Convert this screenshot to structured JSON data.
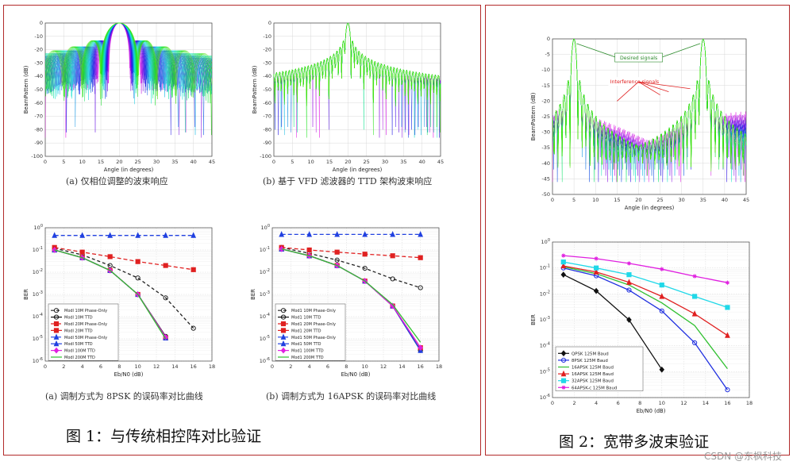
{
  "figure1": {
    "title": "图 1：与传统相控阵对比验证",
    "beam_a": {
      "caption": "(a) 仅相位调整的波束响应",
      "chart_data": {
        "type": "line",
        "title": "",
        "xlabel": "Angle (in degrees)",
        "ylabel": "BeamPattern (dB)",
        "xlim": [
          0,
          45
        ],
        "ylim": [
          -100,
          0
        ],
        "xticks": [
          0,
          5,
          10,
          15,
          20,
          25,
          30,
          35,
          40,
          45
        ],
        "yticks": [
          0,
          -10,
          -20,
          -30,
          -40,
          -50,
          -60,
          -70,
          -80,
          -90,
          -100
        ],
        "mainlobe_deg": 20,
        "mainlobe_dB": 0,
        "beam_width_deg": 4,
        "sidelobe_floor_dB": -40,
        "null_depth_dB": -85
      }
    },
    "beam_b": {
      "caption": "(b) 基于 VFD 滤波器的 TTD 架构波束响应",
      "chart_data": {
        "type": "line",
        "title": "",
        "xlabel": "Angle (in degrees)",
        "ylabel": "BeamPattern (dB)",
        "xlim": [
          0,
          45
        ],
        "ylim": [
          -100,
          0
        ],
        "xticks": [
          0,
          5,
          10,
          15,
          20,
          25,
          30,
          35,
          40,
          45
        ],
        "yticks": [
          0,
          -10,
          -20,
          -30,
          -40,
          -50,
          -60,
          -70,
          -80,
          -90,
          -100
        ],
        "mainlobe_deg": 20,
        "mainlobe_dB": 0,
        "beam_width_deg": 1,
        "sidelobe_floor_dB": -40,
        "null_depth_dB": -85
      }
    },
    "ber_a": {
      "caption": "(a) 调制方式为 8PSK 的误码率对比曲线",
      "chart_data": {
        "type": "line",
        "xlabel": "Eb/N0 (dB)",
        "ylabel": "BER",
        "yscale": "log",
        "xlim": [
          0,
          18
        ],
        "ylim": [
          1e-06,
          1
        ],
        "xticks": [
          0,
          2,
          4,
          6,
          8,
          10,
          12,
          14,
          16,
          18
        ],
        "yticks": [
          1,
          0.1,
          0.01,
          0.001,
          0.0001,
          1e-05,
          1e-06
        ],
        "ytick_labels": [
          "10^0",
          "10^-1",
          "10^-2",
          "10^-3",
          "10^-4",
          "10^-5",
          "10^-6"
        ],
        "legend_position": "lower-left",
        "series": [
          {
            "name": "Modl 10M Phase-Only",
            "color": "#222222",
            "dash": "4,3",
            "marker": "circle",
            "x": [
              1,
              4,
              7,
              10,
              13,
              16
            ],
            "y": [
              0.12,
              0.06,
              0.02,
              0.0055,
              0.0007,
              3e-05
            ]
          },
          {
            "name": "Modl 10M TTD",
            "color": "#111111",
            "dash": "",
            "marker": "circle",
            "x": [
              1,
              4,
              7,
              10,
              13
            ],
            "y": [
              0.1,
              0.045,
              0.012,
              0.001,
              1.3e-05
            ]
          },
          {
            "name": "Modl 20M Phase-Only",
            "color": "#e02020",
            "dash": "5,3",
            "marker": "square",
            "x": [
              1,
              4,
              7,
              10,
              13,
              16
            ],
            "y": [
              0.13,
              0.08,
              0.05,
              0.03,
              0.02,
              0.013
            ]
          },
          {
            "name": "Modl 20M TTD",
            "color": "#e02020",
            "dash": "",
            "marker": "square",
            "x": [
              1,
              4,
              7,
              10,
              13
            ],
            "y": [
              0.1,
              0.045,
              0.012,
              0.001,
              1.1e-05
            ]
          },
          {
            "name": "Modl 50M Phase-Only",
            "color": "#2040e0",
            "dash": "5,3",
            "marker": "triangle",
            "x": [
              1,
              4,
              7,
              10,
              13,
              16
            ],
            "y": [
              0.45,
              0.45,
              0.45,
              0.45,
              0.45,
              0.45
            ]
          },
          {
            "name": "Modl 50M TTD",
            "color": "#2040e0",
            "dash": "",
            "marker": "triangle",
            "x": [
              1,
              4,
              7,
              10,
              13
            ],
            "y": [
              0.1,
              0.045,
              0.012,
              0.001,
              1.1e-05
            ]
          },
          {
            "name": "Modl 100M TTD",
            "color": "#e020e0",
            "dash": "",
            "marker": "diamond",
            "x": [
              1,
              4,
              7,
              10,
              13
            ],
            "y": [
              0.1,
              0.045,
              0.012,
              0.001,
              1.2e-05
            ]
          },
          {
            "name": "Modl 200M TTD",
            "color": "#30c030",
            "dash": "",
            "marker": "none",
            "x": [
              1,
              4,
              7,
              10,
              13
            ],
            "y": [
              0.1,
              0.045,
              0.012,
              0.001,
              1e-05
            ]
          }
        ]
      }
    },
    "ber_b": {
      "caption": "(b) 调制方式为 16APSK 的误码率对比曲线",
      "chart_data": {
        "type": "line",
        "xlabel": "Eb/N0 (dB)",
        "ylabel": "BER",
        "yscale": "log",
        "xlim": [
          0,
          18
        ],
        "ylim": [
          1e-06,
          1
        ],
        "xticks": [
          0,
          2,
          4,
          6,
          8,
          10,
          12,
          14,
          16,
          18
        ],
        "yticks": [
          1,
          0.1,
          0.01,
          0.001,
          0.0001,
          1e-05,
          1e-06
        ],
        "ytick_labels": [
          "10^0",
          "10^-1",
          "10^-2",
          "10^-3",
          "10^-4",
          "10^-5",
          "10^-6"
        ],
        "legend_position": "lower-left",
        "series": [
          {
            "name": "Mod1 10M Phase-Only",
            "color": "#222222",
            "dash": "4,3",
            "marker": "circle",
            "x": [
              1,
              4,
              7,
              10,
              13,
              16
            ],
            "y": [
              0.13,
              0.07,
              0.035,
              0.015,
              0.005,
              0.002
            ]
          },
          {
            "name": "Mod1 10M TTD",
            "color": "#111111",
            "dash": "",
            "marker": "circle",
            "x": [
              1,
              4,
              7,
              10,
              13,
              16
            ],
            "y": [
              0.11,
              0.055,
              0.02,
              0.004,
              0.0003,
              3e-06
            ]
          },
          {
            "name": "Mod1 20M Phase-Only",
            "color": "#e02020",
            "dash": "5,3",
            "marker": "square",
            "x": [
              1,
              4,
              7,
              10,
              13,
              16
            ],
            "y": [
              0.13,
              0.1,
              0.08,
              0.065,
              0.055,
              0.045
            ]
          },
          {
            "name": "Mod1 20M TTD",
            "color": "#e02020",
            "dash": "",
            "marker": "square",
            "x": [
              1,
              4,
              7,
              10,
              13,
              16
            ],
            "y": [
              0.11,
              0.055,
              0.02,
              0.004,
              0.0003,
              4e-06
            ]
          },
          {
            "name": "Mod1 50M Phase-Only",
            "color": "#2040e0",
            "dash": "5,3",
            "marker": "triangle",
            "x": [
              1,
              4,
              7,
              10,
              13,
              16
            ],
            "y": [
              0.5,
              0.5,
              0.5,
              0.5,
              0.5,
              0.5
            ]
          },
          {
            "name": "Mod1 50M TTD",
            "color": "#2040e0",
            "dash": "",
            "marker": "triangle",
            "x": [
              1,
              4,
              7,
              10,
              13,
              16
            ],
            "y": [
              0.11,
              0.055,
              0.02,
              0.004,
              0.0003,
              3e-06
            ]
          },
          {
            "name": "Mod1 100M TTD",
            "color": "#e020e0",
            "dash": "",
            "marker": "diamond",
            "x": [
              1,
              4,
              7,
              10,
              13,
              16
            ],
            "y": [
              0.11,
              0.055,
              0.02,
              0.004,
              0.0003,
              4e-06
            ]
          },
          {
            "name": "Mod1 200M TTD",
            "color": "#30c030",
            "dash": "",
            "marker": "none",
            "x": [
              1,
              4,
              7,
              10,
              13,
              16
            ],
            "y": [
              0.11,
              0.055,
              0.02,
              0.004,
              0.00035,
              7e-06
            ]
          }
        ]
      }
    }
  },
  "figure2": {
    "title": "图 2：宽带多波束验证",
    "beam": {
      "chart_data": {
        "type": "line",
        "xlabel": "Angle (in degrees)",
        "ylabel": "BeamPattern (dB)",
        "xlim": [
          0,
          45
        ],
        "ylim": [
          -50,
          0
        ],
        "xticks": [
          0,
          5,
          10,
          15,
          20,
          25,
          30,
          35,
          40,
          45
        ],
        "yticks": [
          0,
          -5,
          -10,
          -15,
          -20,
          -25,
          -30,
          -35,
          -40,
          -45,
          -50
        ],
        "mainlobes_deg": [
          5,
          35
        ],
        "sidelobe_floor_dB": -25,
        "null_depth_dB": -45,
        "annotations": [
          {
            "text": "Desired signals",
            "color": "#2a8a2a"
          },
          {
            "text": "Interference signals",
            "color": "#e02020"
          }
        ]
      }
    },
    "ber": {
      "chart_data": {
        "type": "line",
        "xlabel": "Eb/N0 (dB)",
        "ylabel": "BER",
        "yscale": "log",
        "xlim": [
          0,
          18
        ],
        "ylim": [
          1e-06,
          1
        ],
        "xticks": [
          0,
          2,
          4,
          6,
          8,
          10,
          12,
          14,
          16,
          18
        ],
        "yticks": [
          1,
          0.1,
          0.01,
          0.001,
          0.0001,
          1e-05,
          1e-06
        ],
        "ytick_labels": [
          "10^0",
          "10^-1",
          "10^-2",
          "10^-3",
          "10^-4",
          "10^-5",
          "10^-6"
        ],
        "legend_position": "lower-left",
        "series": [
          {
            "name": "QPSK 125M Baud",
            "color": "#111111",
            "dash": "",
            "marker": "diamond",
            "x": [
              1,
              4,
              7,
              10
            ],
            "y": [
              0.055,
              0.013,
              0.001,
              1.2e-05
            ]
          },
          {
            "name": "8PSK 125M Baud",
            "color": "#2030e0",
            "dash": "",
            "marker": "circle",
            "x": [
              1,
              4,
              7,
              10,
              13,
              16
            ],
            "y": [
              0.1,
              0.05,
              0.014,
              0.0022,
              0.00013,
              2e-06
            ]
          },
          {
            "name": "16APSK 125M Baud",
            "color": "#30c030",
            "dash": "",
            "marker": "none",
            "x": [
              1,
              4,
              7,
              10,
              13,
              16
            ],
            "y": [
              0.11,
              0.06,
              0.022,
              0.0045,
              0.0006,
              1.3e-05
            ]
          },
          {
            "name": "16APSK 125M Baud",
            "color": "#e02020",
            "dash": "",
            "marker": "triangle",
            "x": [
              1,
              4,
              7,
              10,
              13,
              16
            ],
            "y": [
              0.12,
              0.07,
              0.028,
              0.008,
              0.0017,
              0.00025
            ]
          },
          {
            "name": "32APSK 125M Baud",
            "color": "#20d8e8",
            "dash": "",
            "marker": "square",
            "x": [
              1,
              4,
              7,
              10,
              13,
              16
            ],
            "y": [
              0.17,
              0.1,
              0.055,
              0.022,
              0.008,
              0.003
            ]
          },
          {
            "name": "64APSK-c 125M Baud",
            "color": "#e020e0",
            "dash": "",
            "marker": "star",
            "x": [
              1,
              4,
              7,
              10,
              13,
              16
            ],
            "y": [
              0.3,
              0.23,
              0.15,
              0.09,
              0.048,
              0.027
            ]
          }
        ]
      }
    }
  },
  "watermark": "CSDN @东枫科技"
}
